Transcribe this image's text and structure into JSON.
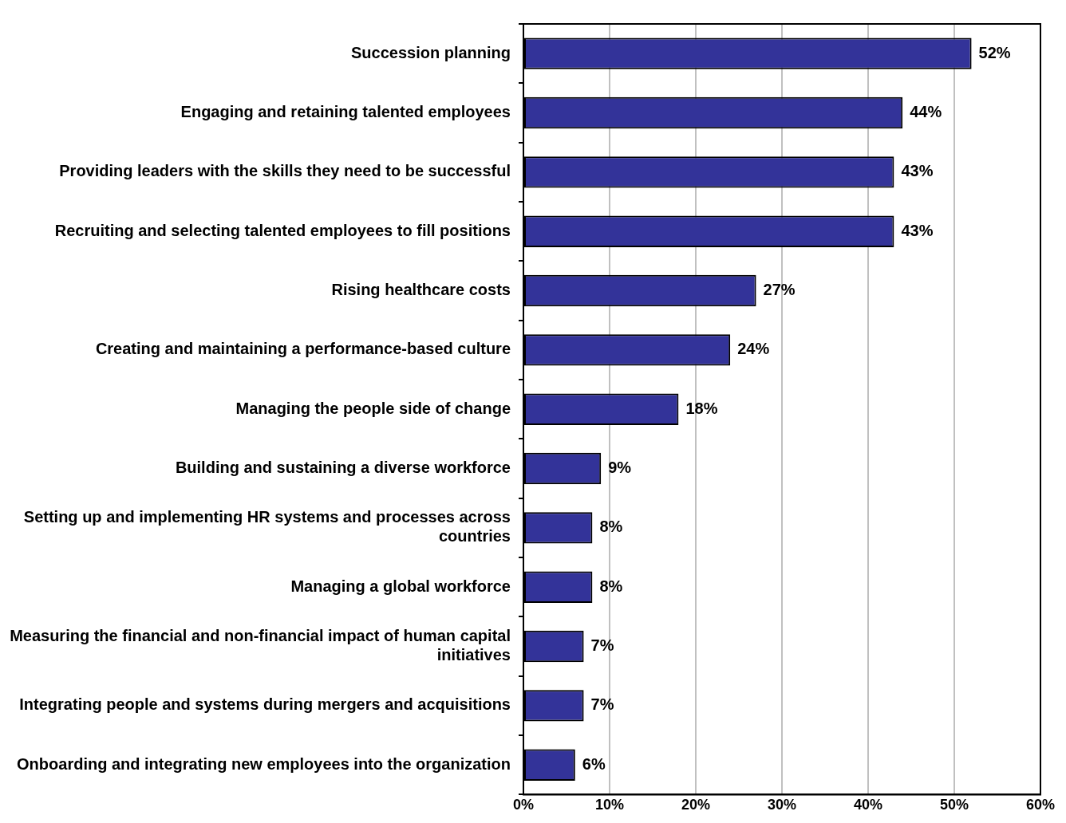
{
  "chart_data": {
    "type": "bar",
    "orientation": "horizontal",
    "categories": [
      "Succession planning",
      "Engaging and retaining talented employees",
      "Providing leaders with the skills they need to be successful",
      "Recruiting and selecting talented employees to fill positions",
      "Rising healthcare costs",
      "Creating and maintaining a performance-based culture",
      "Managing the people side of change",
      "Building and sustaining a diverse workforce",
      "Setting up and implementing HR systems and processes across countries",
      "Managing a global workforce",
      "Measuring the financial and non-financial impact of human capital initiatives",
      "Integrating people and systems during mergers and acquisitions",
      "Onboarding and integrating new employees into the organization"
    ],
    "values": [
      52,
      44,
      43,
      43,
      27,
      24,
      18,
      9,
      8,
      8,
      7,
      7,
      6
    ],
    "value_labels": [
      "52%",
      "44%",
      "43%",
      "43%",
      "27%",
      "24%",
      "18%",
      "9%",
      "8%",
      "8%",
      "7%",
      "7%",
      "6%"
    ],
    "color": "#333399",
    "xlim": [
      0,
      60
    ],
    "xticks": [
      {
        "value": 0,
        "label": "0%"
      },
      {
        "value": 10,
        "label": "10%"
      },
      {
        "value": 20,
        "label": "20%"
      },
      {
        "value": 30,
        "label": "30%"
      },
      {
        "value": 40,
        "label": "40%"
      },
      {
        "value": 50,
        "label": "50%"
      },
      {
        "value": 60,
        "label": "60%"
      }
    ],
    "grid": "x",
    "legend": false
  }
}
